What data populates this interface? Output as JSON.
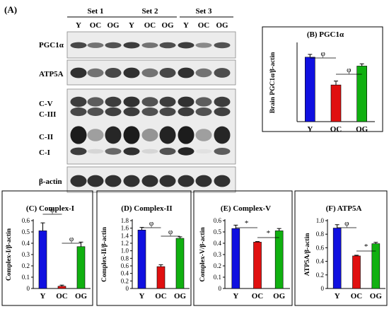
{
  "figure_label": "(A)",
  "blot": {
    "sets": [
      "Set 1",
      "Set 2",
      "Set 3"
    ],
    "lanes": [
      "Y",
      "OC",
      "OG",
      "Y",
      "OC",
      "OG",
      "Y",
      "OC",
      "OG"
    ],
    "panels": [
      {
        "labels": [
          "PGC1α"
        ],
        "rows": [
          {
            "intensity": [
              0.75,
              0.55,
              0.7,
              0.8,
              0.55,
              0.72,
              0.8,
              0.45,
              0.7
            ]
          }
        ]
      },
      {
        "labels": [
          "ATP5A"
        ],
        "rows": [
          {
            "intensity": [
              0.85,
              0.55,
              0.75,
              0.85,
              0.55,
              0.75,
              0.85,
              0.55,
              0.72
            ]
          }
        ]
      },
      {
        "labels": [
          "C-V",
          "C-III",
          "C-II",
          "C-I"
        ],
        "rows": [
          {
            "intensity": [
              0.8,
              0.65,
              0.8,
              0.85,
              0.7,
              0.8,
              0.85,
              0.65,
              0.8
            ]
          },
          {
            "intensity": [
              0.75,
              0.7,
              0.78,
              0.8,
              0.7,
              0.75,
              0.8,
              0.7,
              0.78
            ]
          },
          {
            "intensity": [
              0.95,
              0.35,
              0.9,
              0.95,
              0.4,
              0.92,
              0.95,
              0.35,
              0.9
            ]
          },
          {
            "intensity": [
              0.8,
              0.1,
              0.6,
              0.85,
              0.1,
              0.7,
              0.9,
              0.05,
              0.65
            ]
          }
        ]
      },
      {
        "labels": [
          "β-actin"
        ],
        "rows": [
          {
            "intensity": [
              0.85,
              0.85,
              0.85,
              0.85,
              0.85,
              0.85,
              0.85,
              0.85,
              0.85
            ]
          }
        ]
      }
    ]
  },
  "colors": {
    "Y": "#1010e0",
    "OC": "#e01010",
    "OG": "#10b010"
  },
  "chart_data": [
    {
      "type": "bar",
      "title": "(B) PGC1α",
      "ylabel": "Brain PGC1α/β-actin",
      "categories": [
        "Y",
        "OC",
        "OG"
      ],
      "values": [
        0.58,
        0.33,
        0.5
      ],
      "errors": [
        0.025,
        0.035,
        0.02
      ],
      "ylim": [
        0,
        0.7
      ],
      "yticks": [],
      "significance": [
        {
          "pair": [
            "Y",
            "OC"
          ],
          "symbol": "φ"
        },
        {
          "pair": [
            "OC",
            "OG"
          ],
          "symbol": "φ"
        }
      ]
    },
    {
      "type": "bar",
      "title": "(C) Complex-I",
      "ylabel": "Complex-I/β-actin",
      "categories": [
        "Y",
        "OC",
        "OG"
      ],
      "values": [
        0.51,
        0.02,
        0.37
      ],
      "errors": [
        0.07,
        0.01,
        0.04
      ],
      "ylim": [
        0,
        0.6
      ],
      "yticks": [
        "0",
        "0.1",
        "0.2",
        "0.3",
        "0.4",
        "0.5",
        "0.6"
      ],
      "significance": [
        {
          "pair": [
            "Y",
            "OC"
          ],
          "symbol": "φ"
        },
        {
          "pair": [
            "OC",
            "OG"
          ],
          "symbol": "φ"
        }
      ]
    },
    {
      "type": "bar",
      "title": "(D) Complex-II",
      "ylabel": "Complex-II/β-actin",
      "categories": [
        "Y",
        "OC",
        "OG"
      ],
      "values": [
        1.55,
        0.58,
        1.33
      ],
      "errors": [
        0.07,
        0.05,
        0.04
      ],
      "ylim": [
        0,
        1.8
      ],
      "yticks": [
        "0",
        "0.2",
        "0.4",
        "0.6",
        "0.8",
        "1.0",
        "1.2",
        "1.4",
        "1.6",
        "1.8"
      ],
      "significance": [
        {
          "pair": [
            "Y",
            "OC"
          ],
          "symbol": "φ"
        },
        {
          "pair": [
            "OC",
            "OG"
          ],
          "symbol": "φ"
        }
      ]
    },
    {
      "type": "bar",
      "title": "(E) Complex-V",
      "ylabel": "Complex-V/β-actin",
      "categories": [
        "Y",
        "OC",
        "OG"
      ],
      "values": [
        0.53,
        0.41,
        0.51
      ],
      "errors": [
        0.03,
        0.005,
        0.02
      ],
      "ylim": [
        0,
        0.6
      ],
      "yticks": [
        "0",
        "0.1",
        "0.2",
        "0.3",
        "0.4",
        "0.5",
        "0.6"
      ],
      "significance": [
        {
          "pair": [
            "Y",
            "OC"
          ],
          "symbol": "*"
        },
        {
          "pair": [
            "OC",
            "OG"
          ],
          "symbol": "*"
        }
      ]
    },
    {
      "type": "bar",
      "title": "(F) ATP5A",
      "ylabel": "ATP5A/β-actin",
      "categories": [
        "Y",
        "OC",
        "OG"
      ],
      "values": [
        0.89,
        0.48,
        0.66
      ],
      "errors": [
        0.05,
        0.01,
        0.02
      ],
      "ylim": [
        0,
        1.0
      ],
      "yticks": [
        "0",
        "0.2",
        "0.4",
        "0.6",
        "0.8",
        "1.0"
      ],
      "significance": [
        {
          "pair": [
            "Y",
            "OC"
          ],
          "symbol": "φ"
        },
        {
          "pair": [
            "OC",
            "OG"
          ],
          "symbol": "*"
        }
      ]
    }
  ]
}
